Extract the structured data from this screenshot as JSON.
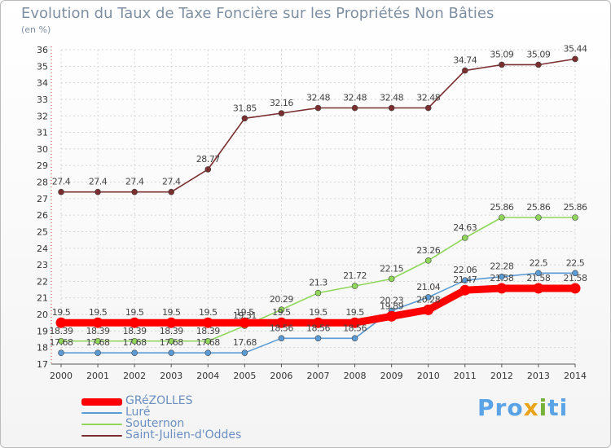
{
  "header": {
    "title": "Evolution du Taux de Taxe Foncière sur les Propriétés Non Bâties",
    "unit": "(en %)"
  },
  "logo": {
    "pre": "Pro",
    "x": "x",
    "i": "i",
    "post": "ti"
  },
  "chart_data": {
    "type": "line",
    "title": "Evolution du Taux de Taxe Foncière sur les Propriétés Non Bâties",
    "ylabel": "(en %)",
    "xlabel": "",
    "x": [
      "2000",
      "2001",
      "2002",
      "2003",
      "2004",
      "2005",
      "2006",
      "2007",
      "2008",
      "2009",
      "2010",
      "2011",
      "2012",
      "2013",
      "2014"
    ],
    "ylim": [
      17,
      36
    ],
    "y_ticks": [
      17,
      18,
      19,
      20,
      21,
      22,
      23,
      24,
      25,
      26,
      27,
      28,
      29,
      30,
      31,
      32,
      33,
      34,
      35,
      36
    ],
    "grid": true,
    "legend_position": "bottom-left",
    "series": [
      {
        "name": "GRéZOLLES",
        "color": "#ff0000",
        "values": [
          19.5,
          19.5,
          19.5,
          19.5,
          19.5,
          19.5,
          19.5,
          19.5,
          19.5,
          19.89,
          20.28,
          21.47,
          21.58,
          21.58,
          21.58
        ],
        "labels": [
          "19.5",
          "19.5",
          "19.5",
          "19.5",
          "19.5",
          "19.5",
          "19.5",
          "19.5",
          "19.5",
          "19.89",
          "20.28",
          "21.47",
          "21.58",
          "21.58",
          "21.58"
        ]
      },
      {
        "name": "Luré",
        "color": "#5b9bd5",
        "values": [
          17.68,
          17.68,
          17.68,
          17.68,
          17.68,
          17.68,
          18.56,
          18.56,
          18.56,
          20.23,
          21.04,
          22.06,
          22.28,
          22.5,
          22.5
        ],
        "labels": [
          "17.68",
          "17.68",
          "17.68",
          "17.68",
          "17.68",
          "17.68",
          "18.56",
          "18.56",
          "18.56",
          "20.23",
          "21.04",
          "22.06",
          "22.28",
          "22.5",
          "22.5"
        ]
      },
      {
        "name": "Souternon",
        "color": "#8fd65a",
        "values": [
          18.39,
          18.39,
          18.39,
          18.39,
          18.39,
          19.31,
          20.29,
          21.3,
          21.72,
          22.15,
          23.26,
          24.63,
          25.86,
          25.86,
          25.86
        ],
        "labels": [
          "18.39",
          "18.39",
          "18.39",
          "18.39",
          "18.39",
          "19.31",
          "20.29",
          "21.3",
          "21.72",
          "22.15",
          "23.26",
          "24.63",
          "25.86",
          "25.86",
          "25.86"
        ]
      },
      {
        "name": "Saint-Julien-d'Oddes",
        "color": "#7a2e2e",
        "values": [
          27.4,
          27.4,
          27.4,
          27.4,
          28.77,
          31.85,
          32.16,
          32.48,
          32.48,
          32.48,
          32.48,
          34.74,
          35.09,
          35.09,
          35.44
        ],
        "labels": [
          "27.4",
          "27.4",
          "27.4",
          "27.4",
          "28.77",
          "31.85",
          "32.16",
          "32.48",
          "32.48",
          "32.48",
          "32.48",
          "34.74",
          "35.09",
          "35.09",
          "35.44"
        ]
      }
    ]
  }
}
